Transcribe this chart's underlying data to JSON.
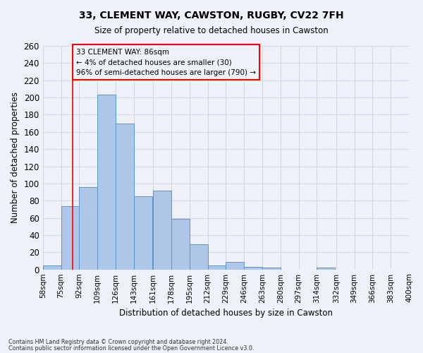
{
  "title1": "33, CLEMENT WAY, CAWSTON, RUGBY, CV22 7FH",
  "title2": "Size of property relative to detached houses in Cawston",
  "xlabel": "Distribution of detached houses by size in Cawston",
  "ylabel": "Number of detached properties",
  "bar_values": [
    5,
    74,
    96,
    203,
    170,
    85,
    92,
    59,
    29,
    5,
    9,
    3,
    2,
    0,
    0,
    2,
    0,
    0,
    0,
    0
  ],
  "bin_starts": [
    58,
    75,
    92,
    109,
    126,
    143,
    161,
    178,
    195,
    212,
    229,
    246,
    263,
    280,
    297,
    314,
    332,
    349,
    366,
    383
  ],
  "bin_width": 17,
  "bin_labels": [
    "58sqm",
    "75sqm",
    "92sqm",
    "109sqm",
    "126sqm",
    "143sqm",
    "161sqm",
    "178sqm",
    "195sqm",
    "212sqm",
    "229sqm",
    "246sqm",
    "263sqm",
    "280sqm",
    "297sqm",
    "314sqm",
    "332sqm",
    "349sqm",
    "366sqm",
    "383sqm",
    "400sqm"
  ],
  "bar_color": "#aec6e8",
  "bar_edge_color": "#5a96c8",
  "grid_color": "#d0d8e8",
  "annotation_box_text": "33 CLEMENT WAY: 86sqm\n← 4% of detached houses are smaller (30)\n96% of semi-detached houses are larger (790) →",
  "vline_x": 86,
  "ylim": [
    0,
    260
  ],
  "yticks": [
    0,
    20,
    40,
    60,
    80,
    100,
    120,
    140,
    160,
    180,
    200,
    220,
    240,
    260
  ],
  "footer_line1": "Contains HM Land Registry data © Crown copyright and database right 2024.",
  "footer_line2": "Contains public sector information licensed under the Open Government Licence v3.0.",
  "bg_color": "#eef2f8"
}
